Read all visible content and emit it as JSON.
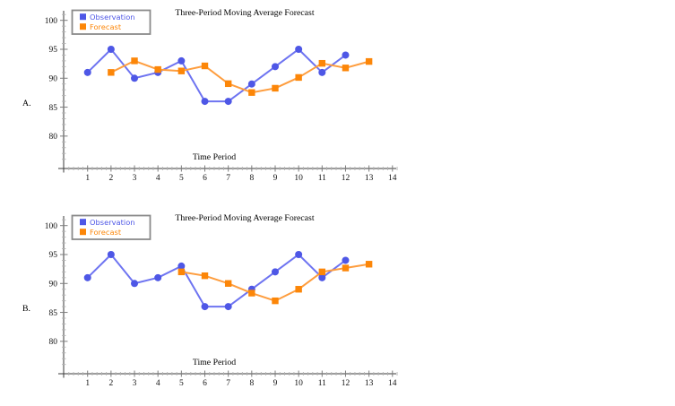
{
  "page": {
    "background": "#ffffff",
    "text_color": "#000000"
  },
  "chart_data": [
    {
      "type": "line",
      "section_label": "A.",
      "title": "Three-Period Moving Average Forecast",
      "xlabel": "Time Period",
      "ylabel": "",
      "xlim": [
        0,
        14.3
      ],
      "ylim": [
        74.4,
        101.5
      ],
      "x_ticks": [
        1,
        2,
        3,
        4,
        5,
        6,
        7,
        8,
        9,
        10,
        11,
        12,
        13,
        14
      ],
      "y_ticks": [
        80,
        85,
        90,
        95,
        100
      ],
      "x_minor_step": 0.2,
      "y_minor_step": 1,
      "grid": false,
      "legend": {
        "position": "top-left",
        "border_color": "#8a8a8a"
      },
      "series": [
        {
          "name": "Observation",
          "marker": "circle",
          "color": "#4E57E6",
          "line_color": "#6E74F1",
          "x": [
            1,
            2,
            3,
            4,
            5,
            6,
            7,
            8,
            9,
            10,
            11,
            12
          ],
          "y": [
            91,
            95,
            90,
            91,
            93,
            86,
            86,
            89,
            92,
            95,
            91,
            94
          ]
        },
        {
          "name": "Forecast",
          "marker": "square",
          "color": "#FC8608",
          "line_color": "#FE9D3E",
          "x": [
            2,
            3,
            4,
            5,
            6,
            7,
            8,
            9,
            10,
            11,
            12,
            13
          ],
          "y": [
            91,
            93,
            91.5,
            91.25,
            92.13,
            89.06,
            87.53,
            88.27,
            90.13,
            92.57,
            91.78,
            92.89
          ]
        }
      ]
    },
    {
      "type": "line",
      "section_label": "B.",
      "title": "Three-Period Moving Average Forecast",
      "xlabel": "Time Period",
      "ylabel": "",
      "xlim": [
        0,
        14.3
      ],
      "ylim": [
        74.4,
        101.5
      ],
      "x_ticks": [
        1,
        2,
        3,
        4,
        5,
        6,
        7,
        8,
        9,
        10,
        11,
        12,
        13,
        14
      ],
      "y_ticks": [
        80,
        85,
        90,
        95,
        100
      ],
      "x_minor_step": 0.2,
      "y_minor_step": 1,
      "grid": false,
      "legend": {
        "position": "top-left",
        "border_color": "#8a8a8a"
      },
      "series": [
        {
          "name": "Observation",
          "marker": "circle",
          "color": "#4E57E6",
          "line_color": "#6E74F1",
          "x": [
            1,
            2,
            3,
            4,
            5,
            6,
            7,
            8,
            9,
            10,
            11,
            12
          ],
          "y": [
            91,
            95,
            90,
            91,
            93,
            86,
            86,
            89,
            92,
            95,
            91,
            94
          ]
        },
        {
          "name": "Forecast",
          "marker": "square",
          "color": "#FC8608",
          "line_color": "#FE9D3E",
          "x": [
            5,
            6,
            7,
            8,
            9,
            10,
            11,
            12,
            13
          ],
          "y": [
            92,
            91.33,
            90,
            88.33,
            87,
            89,
            92,
            92.67,
            93.33
          ]
        }
      ]
    }
  ]
}
